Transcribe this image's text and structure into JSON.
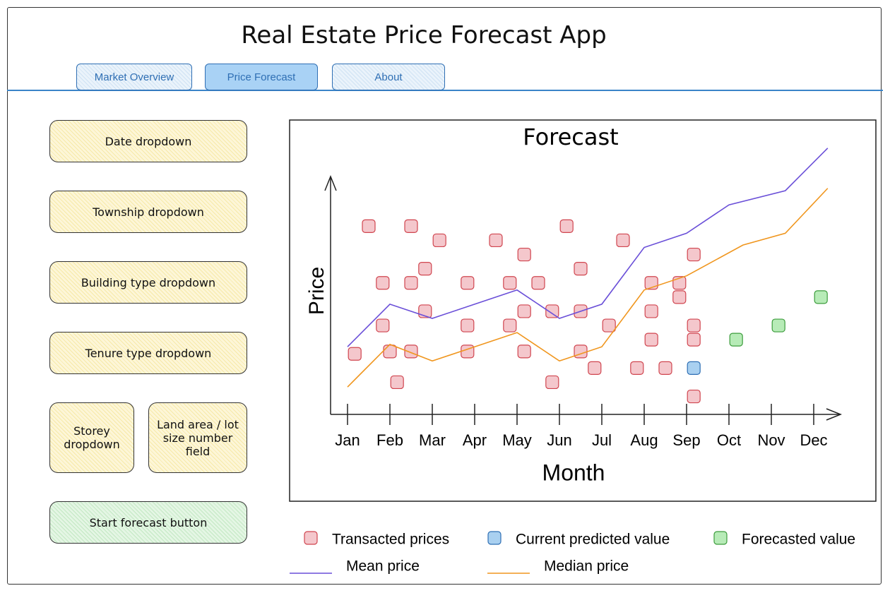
{
  "header": {
    "title": "Real Estate Price Forecast App"
  },
  "tabs": [
    "Market Overview",
    "Price Forecast",
    "About"
  ],
  "controls": [
    "Date dropdown",
    "Township dropdown",
    "Building type dropdown",
    "Tenure type dropdown",
    "Storey dropdown",
    "Land area / lot size number field"
  ],
  "button": "Start forecast button",
  "chart_data": {
    "type": "scatter",
    "title": "Forecast",
    "x_label": "Month",
    "y_label": "Price",
    "xlim": [
      0.6,
      12.7
    ],
    "ylim": [
      0,
      120
    ],
    "xticks": [
      {
        "value": 1,
        "label": "Jan"
      },
      {
        "value": 2,
        "label": "Feb"
      },
      {
        "value": 3,
        "label": "Mar"
      },
      {
        "value": 4,
        "label": "Apr"
      },
      {
        "value": 5,
        "label": "May"
      },
      {
        "value": 6,
        "label": "Jun"
      },
      {
        "value": 7,
        "label": "Jul"
      },
      {
        "value": 8,
        "label": "Aug"
      },
      {
        "value": 9,
        "label": "Sep"
      },
      {
        "value": 10,
        "label": "Oct"
      },
      {
        "value": 11,
        "label": "Nov"
      },
      {
        "value": 12,
        "label": "Dec"
      }
    ],
    "series": [
      {
        "name": "Transacted prices",
        "type": "scatter",
        "color": "#f4c7cc",
        "x": [
          1.17,
          1.5,
          1.83,
          1.83,
          2.0,
          2.17,
          2.5,
          2.5,
          2.5,
          2.83,
          2.83,
          3.17,
          3.83,
          3.83,
          3.83,
          4.5,
          4.83,
          4.83,
          5.17,
          5.17,
          5.17,
          5.5,
          5.83,
          5.83,
          6.17,
          6.5,
          6.5,
          6.5,
          6.83,
          7.17,
          7.5,
          7.83,
          8.17,
          8.17,
          8.17,
          8.5,
          8.83,
          8.83,
          9.17,
          9.17,
          9.17,
          9.17
        ],
        "values": [
          25,
          79,
          55,
          37,
          26,
          13,
          79,
          55,
          26,
          61,
          43,
          73,
          55,
          37,
          26,
          73,
          55,
          37,
          67,
          43,
          26,
          55,
          43,
          13,
          79,
          61,
          43,
          26,
          19,
          37,
          73,
          19,
          55,
          43,
          31,
          19,
          55,
          49,
          67,
          37,
          31,
          7
        ]
      },
      {
        "name": "Current predicted value",
        "type": "scatter",
        "color": "#a9d0f0",
        "x": [
          9.17
        ],
        "values": [
          19
        ]
      },
      {
        "name": "Forecasted value",
        "type": "scatter",
        "color": "#b7ebb7",
        "x": [
          10.17,
          11.17,
          12.17
        ],
        "values": [
          31,
          37,
          49
        ]
      },
      {
        "name": "Mean price",
        "type": "line",
        "color": "#6a4fd8",
        "x": [
          1,
          2,
          3,
          4,
          5,
          6,
          7,
          8,
          9,
          10,
          11.33,
          12.33
        ],
        "values": [
          28,
          46,
          40,
          46,
          52,
          40,
          46,
          70,
          76,
          88,
          94,
          112
        ]
      },
      {
        "name": "Median price",
        "type": "line",
        "color": "#f0961e",
        "x": [
          1,
          2,
          3,
          4,
          5,
          6,
          7,
          8,
          9,
          10.33,
          11.33,
          12.33
        ],
        "values": [
          11,
          29,
          22,
          28,
          34,
          22,
          28,
          52,
          58,
          71,
          76,
          95
        ]
      }
    ]
  }
}
